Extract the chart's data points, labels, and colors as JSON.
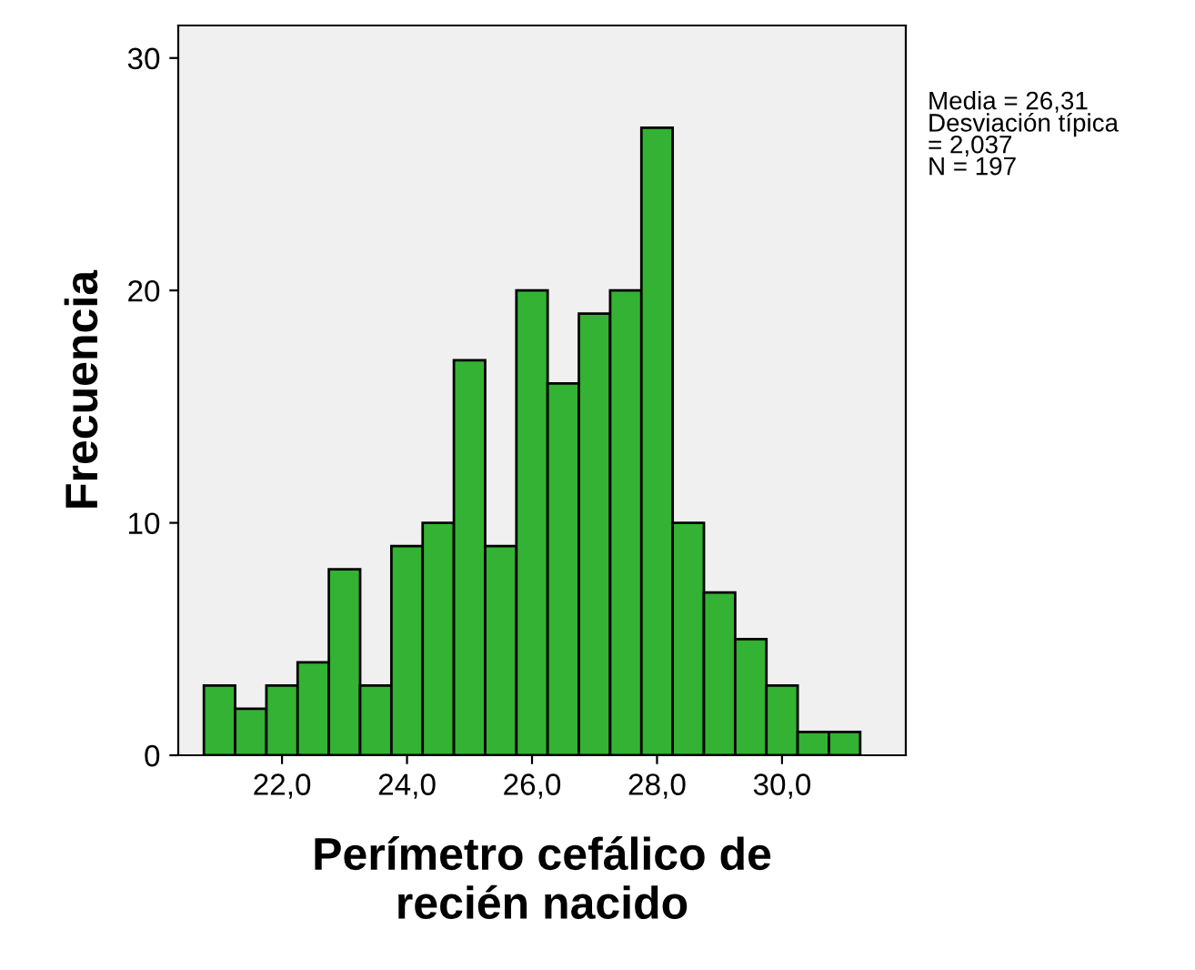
{
  "chart_data": {
    "type": "histogram",
    "xlabel": "Perímetro cefálico de\nrecién nacido",
    "ylabel": "Frecuencia",
    "bins": [
      20.75,
      21.25,
      21.75,
      22.25,
      22.75,
      23.25,
      23.75,
      24.25,
      24.75,
      25.25,
      25.75,
      26.25,
      26.75,
      27.25,
      27.75,
      28.25,
      28.75,
      29.25,
      29.75,
      30.25,
      30.75,
      31.25
    ],
    "values": [
      3,
      2,
      3,
      4,
      8,
      3,
      9,
      10,
      17,
      9,
      20,
      16,
      19,
      20,
      27,
      10,
      7,
      5,
      3,
      1,
      1
    ],
    "color": "#33b233",
    "xlim": [
      20.34,
      31.98
    ],
    "ylim": [
      0,
      31.4
    ],
    "xticks": [
      {
        "value": 22,
        "label": "22,0"
      },
      {
        "value": 24,
        "label": "24,0"
      },
      {
        "value": 26,
        "label": "26,0"
      },
      {
        "value": 28,
        "label": "28,0"
      },
      {
        "value": 30,
        "label": "30,0"
      }
    ],
    "yticks": [
      0,
      10,
      20,
      30
    ],
    "grid": false,
    "legend": false,
    "annotations": [
      "Media = 26,31",
      "Desviación típica\n= 2,037",
      "N = 197"
    ]
  }
}
